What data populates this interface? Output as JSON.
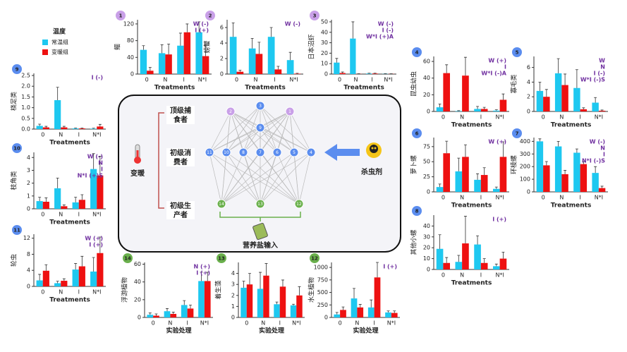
{
  "legend": {
    "title": "温度"
  },
  "food_web": {
    "levels": [
      [
        "顶级捕",
        "食者"
      ],
      [
        "初级消",
        "费者"
      ],
      [
        "初级生",
        "产者"
      ]
    ],
    "warming": "变暖",
    "pesticide": "杀虫剂",
    "nutrient": "营养盐输入",
    "nodes": [
      "2",
      "3",
      "1",
      "9",
      "11",
      "10",
      "8",
      "7",
      "6",
      "5",
      "4",
      "14",
      "13",
      "12"
    ]
  },
  "chart_data": [
    {
      "type": "bar",
      "number": 1,
      "ylabel": "鲴",
      "xlabel": "Treatments",
      "annotation": [
        "W (-)",
        "I (+)"
      ],
      "categories": [
        "0",
        "N",
        "I",
        "N*I"
      ],
      "ylim": [
        0,
        130
      ],
      "yticks": [
        0,
        40,
        80,
        120
      ],
      "series": [
        {
          "name": "常温组",
          "color": "#1ec8f0",
          "values": [
            58,
            50,
            68,
            100
          ],
          "errors": [
            10,
            20,
            30,
            25
          ]
        },
        {
          "name": "变暖组",
          "color": "#ee1111",
          "values": [
            8,
            47,
            100,
            43
          ],
          "errors": [
            8,
            25,
            20,
            25
          ]
        }
      ]
    },
    {
      "type": "bar",
      "number": 2,
      "ylabel": "螃蟹",
      "xlabel": "Treatments",
      "annotation": [
        "W (-)"
      ],
      "categories": [
        "0",
        "N",
        "I",
        "N*I"
      ],
      "ylim": [
        0,
        7
      ],
      "yticks": [
        0,
        2,
        4,
        6
      ],
      "series": [
        {
          "name": "常温组",
          "color": "#1ec8f0",
          "values": [
            4.8,
            3.3,
            4.8,
            1.8
          ],
          "errors": [
            1.8,
            1.3,
            1.2,
            1
          ]
        },
        {
          "name": "变暖组",
          "color": "#ee1111",
          "values": [
            0.3,
            2.6,
            0.6,
            0.05
          ],
          "errors": [
            0.2,
            1.5,
            0.4,
            0.05
          ]
        }
      ]
    },
    {
      "type": "bar",
      "number": 3,
      "ylabel": "日本沼虾",
      "xlabel": "Treatments",
      "annotation": [
        "W (-)",
        "I (-)",
        "W*I (+)A"
      ],
      "categories": [
        "0",
        "N",
        "I",
        "N*I"
      ],
      "ylim": [
        0,
        52
      ],
      "yticks": [
        0,
        10,
        20,
        30,
        40,
        50
      ],
      "series": [
        {
          "name": "常温组",
          "color": "#1ec8f0",
          "values": [
            11,
            34,
            0.5,
            0.2
          ],
          "errors": [
            4,
            16,
            0.3,
            0.2
          ]
        },
        {
          "name": "变暖组",
          "color": "#ee1111",
          "values": [
            1,
            0.2,
            0.5,
            0.2
          ],
          "errors": [
            1,
            0.1,
            0.3,
            0.1
          ]
        }
      ]
    },
    {
      "type": "bar",
      "number": 4,
      "ylabel": "昆虫幼虫",
      "xlabel": "Treatments",
      "annotation": [
        "W (+)",
        "I",
        "W*I (-)A"
      ],
      "categories": [
        "0",
        "N",
        "I",
        "N*I"
      ],
      "ylim": [
        0,
        66
      ],
      "yticks": [
        0,
        20,
        40,
        60
      ],
      "series": [
        {
          "name": "常温组",
          "color": "#1ec8f0",
          "values": [
            5,
            0.5,
            3,
            1
          ],
          "errors": [
            4,
            0.5,
            3,
            1
          ]
        },
        {
          "name": "变暖组",
          "color": "#ee1111",
          "values": [
            46,
            43,
            3,
            14
          ],
          "errors": [
            10,
            22,
            2,
            7
          ]
        }
      ]
    },
    {
      "type": "bar",
      "number": 5,
      "ylabel": "寡毛类",
      "xlabel": "Treatments",
      "annotation": [
        "W",
        "N",
        "I (-)",
        "W*I (-)S"
      ],
      "categories": [
        "0",
        "N",
        "I",
        "N*I"
      ],
      "ylim": [
        0,
        7.5
      ],
      "yticks": [
        0,
        2,
        4,
        6
      ],
      "series": [
        {
          "name": "常温组",
          "color": "#1ec8f0",
          "values": [
            2.8,
            5.2,
            3.2,
            1.2
          ],
          "errors": [
            1.2,
            2,
            2.5,
            0.7
          ]
        },
        {
          "name": "变暖组",
          "color": "#ee1111",
          "values": [
            2,
            3.6,
            0.3,
            0.1
          ],
          "errors": [
            1,
            1.5,
            0.2,
            0.1
          ]
        }
      ]
    },
    {
      "type": "bar",
      "number": 6,
      "ylabel": "萝卜螺",
      "xlabel": "Treatments",
      "annotation": [
        "W (+)"
      ],
      "categories": [
        "0",
        "N",
        "I",
        "N*I"
      ],
      "ylim": [
        0,
        90
      ],
      "yticks": [
        0,
        25,
        50,
        75
      ],
      "series": [
        {
          "name": "常温组",
          "color": "#1ec8f0",
          "values": [
            8,
            34,
            20,
            5
          ],
          "errors": [
            5,
            22,
            10,
            3
          ]
        },
        {
          "name": "变暖组",
          "color": "#ee1111",
          "values": [
            64,
            58,
            28,
            58
          ],
          "errors": [
            20,
            20,
            12,
            25
          ]
        }
      ]
    },
    {
      "type": "bar",
      "number": 7,
      "ylabel": "环棱螺",
      "xlabel": "Treatments",
      "annotation": [
        "W (-)",
        "N",
        "I",
        "N*I (-)S"
      ],
      "categories": [
        "0",
        "N",
        "I",
        "N*I"
      ],
      "ylim": [
        0,
        430
      ],
      "yticks": [
        0,
        100,
        200,
        300,
        400
      ],
      "series": [
        {
          "name": "常温组",
          "color": "#1ec8f0",
          "values": [
            400,
            360,
            310,
            150
          ],
          "errors": [
            20,
            40,
            30,
            50
          ]
        },
        {
          "name": "变暖组",
          "color": "#ee1111",
          "values": [
            210,
            140,
            220,
            30
          ],
          "errors": [
            30,
            30,
            20,
            15
          ]
        }
      ]
    },
    {
      "type": "bar",
      "number": 8,
      "ylabel": "其他小螺",
      "xlabel": "Treatments",
      "annotation": [
        "I (+)"
      ],
      "categories": [
        "0",
        "N",
        "I",
        "N*I"
      ],
      "ylim": [
        0,
        50
      ],
      "yticks": [
        0,
        10,
        20,
        30,
        40
      ],
      "series": [
        {
          "name": "常温组",
          "color": "#1ec8f0",
          "values": [
            19,
            7,
            23,
            3
          ],
          "errors": [
            13,
            6,
            8,
            2
          ]
        },
        {
          "name": "变暖组",
          "color": "#ee1111",
          "values": [
            6,
            24,
            6,
            10
          ],
          "errors": [
            5,
            25,
            4,
            6
          ]
        }
      ]
    },
    {
      "type": "bar",
      "number": 9,
      "ylabel": "桡足类",
      "xlabel": "Treatments",
      "annotation": [
        "I (-)"
      ],
      "categories": [
        "0",
        "N",
        "I",
        "N*I"
      ],
      "ylim": [
        0,
        2.6
      ],
      "yticks": [
        {
          "value": 0,
          "label": "0.0"
        },
        0.5,
        {
          "value": 1,
          "label": "1.0"
        },
        1.5,
        {
          "value": 2,
          "label": "2.0"
        },
        2.5
      ],
      "series": [
        {
          "name": "常温组",
          "color": "#1ec8f0",
          "values": [
            0.15,
            1.35,
            0.03,
            0.02
          ],
          "errors": [
            0.08,
            0.6,
            0.02,
            0.02
          ]
        },
        {
          "name": "变暖组",
          "color": "#ee1111",
          "values": [
            0.08,
            0.08,
            0.03,
            0.12
          ],
          "errors": [
            0.05,
            0.05,
            0.02,
            0.1
          ]
        }
      ]
    },
    {
      "type": "bar",
      "number": 10,
      "ylabel": "枝角类",
      "xlabel": "Treatments",
      "annotation": [
        "W (-)",
        "N",
        "I",
        "N*I (+)S"
      ],
      "categories": [
        "0",
        "N",
        "I",
        "N*I"
      ],
      "ylim": [
        0,
        4.4
      ],
      "yticks": [
        0,
        1,
        2,
        3,
        4
      ],
      "series": [
        {
          "name": "常温组",
          "color": "#1ec8f0",
          "values": [
            0.6,
            1.6,
            0.5,
            3.1
          ],
          "errors": [
            0.3,
            0.8,
            0.4,
            1.2
          ]
        },
        {
          "name": "变暖组",
          "color": "#ee1111",
          "values": [
            0.55,
            0.2,
            0.7,
            2.6
          ],
          "errors": [
            0.3,
            0.1,
            0.4,
            1.5
          ]
        }
      ]
    },
    {
      "type": "bar",
      "number": 11,
      "ylabel": "轮虫",
      "xlabel": "Treatments",
      "annotation": [
        "W (+)",
        "I (+)"
      ],
      "categories": [
        "0",
        "N",
        "I",
        "N*I"
      ],
      "ylim": [
        0,
        13
      ],
      "yticks": [
        0,
        4,
        8,
        12
      ],
      "series": [
        {
          "name": "常温组",
          "color": "#1ec8f0",
          "values": [
            1.5,
            0.8,
            4.2,
            3.7
          ],
          "errors": [
            1.5,
            0.5,
            1.5,
            3.5
          ]
        },
        {
          "name": "变暖组",
          "color": "#ee1111",
          "values": [
            3.9,
            1.4,
            5,
            8.3
          ],
          "errors": [
            1.5,
            0.5,
            2.5,
            4
          ]
        }
      ]
    },
    {
      "type": "bar",
      "number": 12,
      "ylabel": "水生植物",
      "xlabel": "实验处理",
      "annotation": [
        "I (+)"
      ],
      "categories": [
        "0",
        "N",
        "I",
        "N*I"
      ],
      "ylim": [
        0,
        1100
      ],
      "yticks": [
        0,
        250,
        500,
        750,
        1000
      ],
      "series": [
        {
          "name": "常温组",
          "color": "#1ec8f0",
          "values": [
            60,
            380,
            200,
            100
          ],
          "errors": [
            40,
            200,
            150,
            30
          ]
        },
        {
          "name": "变暖组",
          "color": "#ee1111",
          "values": [
            150,
            200,
            800,
            90
          ],
          "errors": [
            60,
            60,
            300,
            40
          ]
        }
      ]
    },
    {
      "type": "bar",
      "number": 13,
      "ylabel": "着生藻",
      "xlabel": "实验处理",
      "annotation": [],
      "categories": [
        "0",
        "N",
        "I",
        "N*I"
      ],
      "ylim": [
        0,
        5
      ],
      "yticks": [
        0,
        1,
        2,
        3,
        4
      ],
      "series": [
        {
          "name": "常温组",
          "color": "#1ec8f0",
          "values": [
            2.7,
            2.6,
            1.2,
            1.1
          ],
          "errors": [
            0.6,
            1.5,
            0.2,
            0.1
          ]
        },
        {
          "name": "变暖组",
          "color": "#ee1111",
          "values": [
            3,
            3.8,
            2.8,
            2
          ],
          "errors": [
            1,
            1.1,
            0.6,
            0.8
          ]
        }
      ]
    },
    {
      "type": "bar",
      "number": 14,
      "ylabel": "浮游植物",
      "xlabel": "实验处理",
      "annotation": [
        "N (+)",
        "I (+)"
      ],
      "categories": [
        "0",
        "N",
        "I",
        "N*I"
      ],
      "ylim": [
        0,
        62
      ],
      "yticks": [
        0,
        20,
        40,
        60
      ],
      "series": [
        {
          "name": "常温组",
          "color": "#1ec8f0",
          "values": [
            3,
            7,
            14,
            41
          ],
          "errors": [
            2,
            3,
            5,
            10
          ]
        },
        {
          "name": "变暖组",
          "color": "#ee1111",
          "values": [
            2,
            4,
            10,
            41
          ],
          "errors": [
            2,
            2,
            4,
            10
          ]
        }
      ]
    }
  ]
}
